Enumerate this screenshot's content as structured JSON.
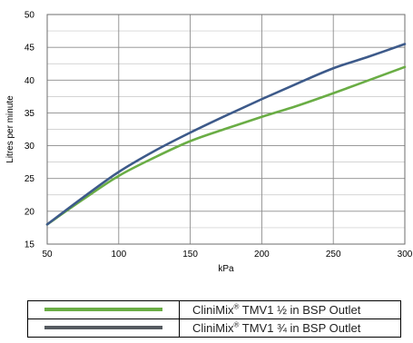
{
  "chart_data": {
    "type": "line",
    "xlabel": "kPa",
    "ylabel": "Litres per minute",
    "xlim": [
      50,
      300
    ],
    "ylim": [
      15,
      50
    ],
    "x_ticks": [
      "50",
      "100",
      "150",
      "200",
      "250",
      "300"
    ],
    "y_ticks": [
      "15",
      "20",
      "25",
      "30",
      "35",
      "40",
      "45",
      "50"
    ],
    "grid": true,
    "legend_position": "bottom",
    "x": [
      50,
      75,
      100,
      125,
      150,
      175,
      200,
      225,
      250,
      275,
      300
    ],
    "series": [
      {
        "name": "CliniMix® TMV1 ½ in BSP Outlet",
        "name_main": "CliniMix",
        "name_mark": "®",
        "name_rest": " TMV1 ½ in BSP Outlet",
        "color": "#6aad45",
        "values": [
          18.0,
          21.8,
          25.4,
          28.2,
          30.7,
          32.6,
          34.4,
          36.1,
          38.0,
          40.0,
          42.0
        ]
      },
      {
        "name": "CliniMix® TMV1 ¾ in BSP Outlet",
        "name_main": "CliniMix",
        "name_mark": "®",
        "name_rest": " TMV1 ¾ in BSP Outlet",
        "color": "#3d5a8a",
        "legend_color": "#555a60",
        "values": [
          18.0,
          22.1,
          26.0,
          29.2,
          32.0,
          34.6,
          37.1,
          39.5,
          41.8,
          43.6,
          45.5
        ]
      }
    ]
  }
}
